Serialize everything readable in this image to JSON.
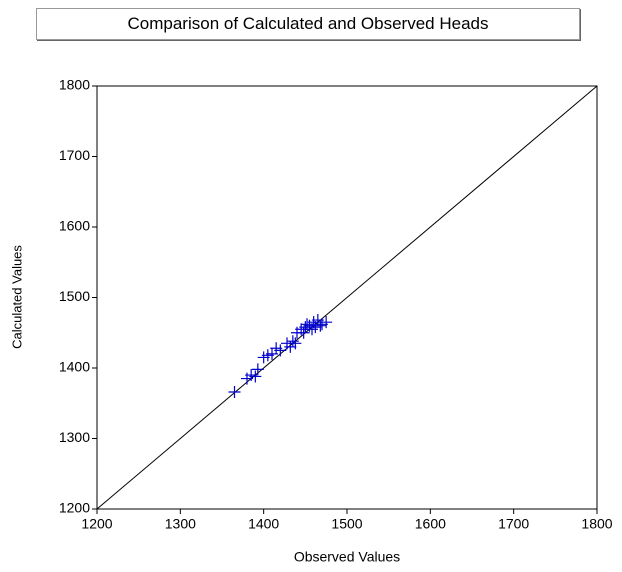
{
  "chart_data": {
    "type": "scatter",
    "title": "Comparison of Calculated and Observed Heads",
    "x_label": "Observed Values",
    "y_label": "Calculated Values",
    "xlim": [
      1200,
      1800
    ],
    "ylim": [
      1200,
      1800
    ],
    "xticks": [
      1200,
      1300,
      1400,
      1500,
      1600,
      1700,
      1800
    ],
    "yticks": [
      1200,
      1300,
      1400,
      1500,
      1600,
      1700,
      1800
    ],
    "reference_line": {
      "x": [
        1200,
        1800
      ],
      "y": [
        1200,
        1800
      ]
    },
    "series": [
      {
        "color": "#0000cc",
        "x": [
          1365,
          1380,
          1385,
          1390,
          1393,
          1400,
          1405,
          1410,
          1415,
          1420,
          1428,
          1432,
          1435,
          1438,
          1440,
          1445,
          1448,
          1450,
          1452,
          1455,
          1458,
          1460,
          1462,
          1465,
          1468,
          1470,
          1475
        ],
        "values": [
          1366,
          1385,
          1390,
          1388,
          1398,
          1415,
          1418,
          1420,
          1428,
          1425,
          1435,
          1430,
          1438,
          1435,
          1450,
          1455,
          1450,
          1458,
          1462,
          1460,
          1455,
          1465,
          1458,
          1468,
          1460,
          1462,
          1465
        ]
      }
    ]
  }
}
